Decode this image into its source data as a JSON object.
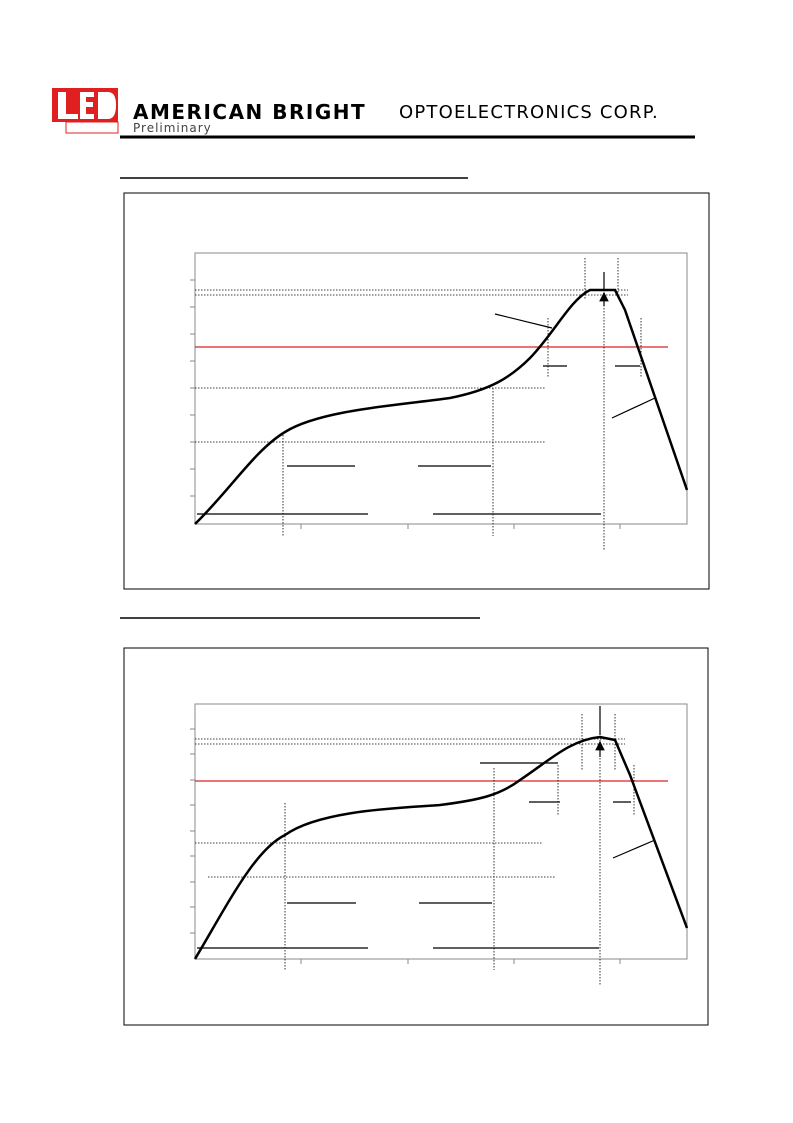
{
  "header": {
    "company_bold": "AMERICAN BRIGHT",
    "company_rest": "OPTOELECTRONICS CORP.",
    "status": "Preliminary"
  }
}
